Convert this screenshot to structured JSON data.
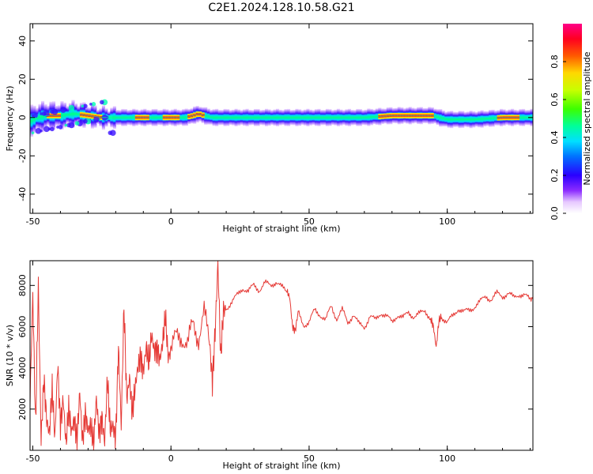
{
  "title": "C2E1.2024.128.10.58.G21",
  "chart_data": [
    {
      "type": "heatmap",
      "xlabel": "Height of straight line (km)",
      "ylabel": "Frequency (Hz)",
      "xlim": [
        -51,
        131
      ],
      "ylim": [
        -50,
        49
      ],
      "xticks": [
        -50,
        0,
        50,
        100
      ],
      "yticks": [
        -40,
        -20,
        0,
        20,
        40
      ],
      "colorbar": {
        "label": "Normalized spectral amplitude",
        "range": [
          0,
          1
        ],
        "ticks": [
          "0.0",
          "0.2",
          "0.4",
          "0.6",
          "0.8"
        ]
      },
      "ridge_frequency_hz": [
        [
          -51,
          -2
        ],
        [
          -48,
          0
        ],
        [
          -45,
          1
        ],
        [
          -40,
          1
        ],
        [
          -35,
          2
        ],
        [
          -30,
          1
        ],
        [
          -25,
          0
        ],
        [
          -20,
          0
        ],
        [
          -15,
          0
        ],
        [
          -10,
          0
        ],
        [
          -5,
          0
        ],
        [
          0,
          0
        ],
        [
          5,
          0
        ],
        [
          8,
          1
        ],
        [
          10,
          2
        ],
        [
          12,
          1
        ],
        [
          15,
          0
        ],
        [
          20,
          0
        ],
        [
          30,
          0
        ],
        [
          40,
          0
        ],
        [
          50,
          0
        ],
        [
          60,
          0
        ],
        [
          70,
          0
        ],
        [
          80,
          1
        ],
        [
          90,
          1
        ],
        [
          95,
          1
        ],
        [
          97,
          0
        ],
        [
          100,
          -1
        ],
        [
          110,
          -1
        ],
        [
          120,
          0
        ],
        [
          131,
          0
        ]
      ]
    },
    {
      "type": "line",
      "xlabel": "Height of straight line (km)",
      "ylabel": "SNR (10 * v/v)",
      "xlim": [
        -51,
        131
      ],
      "ylim": [
        0,
        9200
      ],
      "xticks": [
        -50,
        0,
        50,
        100
      ],
      "yticks": [
        2000,
        4000,
        6000,
        8000
      ],
      "color": "#e53935",
      "series": [
        {
          "x": [
            -51,
            -50,
            -49,
            -48,
            -47,
            -46,
            -45,
            -44,
            -43,
            -42,
            -41,
            -40,
            -39,
            -38,
            -37,
            -36,
            -35,
            -34,
            -33,
            -32,
            -31,
            -30,
            -29,
            -28,
            -27,
            -26,
            -25,
            -24,
            -23,
            -22,
            -21,
            -20,
            -19,
            -18,
            -17,
            -16,
            -15,
            -14,
            -13,
            -12,
            -11,
            -10,
            -9,
            -8,
            -7,
            -6,
            -5,
            -4,
            -3,
            -2,
            -1,
            0,
            2,
            4,
            6,
            8,
            10,
            12,
            14,
            15,
            16,
            17,
            18,
            19,
            20,
            22,
            24,
            26,
            28,
            30,
            32,
            34,
            36,
            38,
            40,
            42,
            43,
            44,
            45,
            46,
            48,
            50,
            52,
            54,
            56,
            58,
            60,
            62,
            64,
            66,
            68,
            70,
            72,
            74,
            76,
            78,
            80,
            82,
            84,
            86,
            88,
            90,
            92,
            94,
            95,
            96,
            97,
            98,
            100,
            102,
            104,
            106,
            108,
            110,
            112,
            114,
            116,
            118,
            120,
            122,
            124,
            126,
            128,
            130,
            131
          ],
          "y": [
            2500,
            7500,
            1200,
            8000,
            500,
            3500,
            1500,
            800,
            3000,
            600,
            4200,
            1200,
            2500,
            300,
            2000,
            900,
            1500,
            500,
            2800,
            400,
            1800,
            1000,
            1200,
            300,
            2500,
            800,
            1600,
            400,
            3500,
            1000,
            1200,
            600,
            5000,
            1200,
            7000,
            2500,
            3500,
            1800,
            3000,
            4000,
            4600,
            3800,
            5000,
            4200,
            5600,
            4800,
            5000,
            4400,
            5200,
            6500,
            4500,
            4800,
            5500,
            5600,
            5000,
            6200,
            5500,
            6600,
            5200,
            3300,
            5800,
            9100,
            4500,
            6800,
            6900,
            7200,
            7500,
            7900,
            7700,
            8000,
            7800,
            8100,
            8000,
            8200,
            7900,
            7700,
            7400,
            6000,
            5800,
            6700,
            6100,
            6200,
            6800,
            6600,
            6300,
            7000,
            6400,
            6800,
            6200,
            6600,
            6100,
            6000,
            6500,
            6300,
            6700,
            6500,
            6200,
            6600,
            6400,
            6700,
            6500,
            6600,
            6800,
            6400,
            6000,
            5000,
            6300,
            6500,
            6200,
            6500,
            6900,
            6700,
            6800,
            7000,
            7200,
            7500,
            7300,
            7600,
            7500,
            7600,
            7400,
            7600,
            7500,
            7300,
            7400
          ]
        }
      ]
    }
  ]
}
